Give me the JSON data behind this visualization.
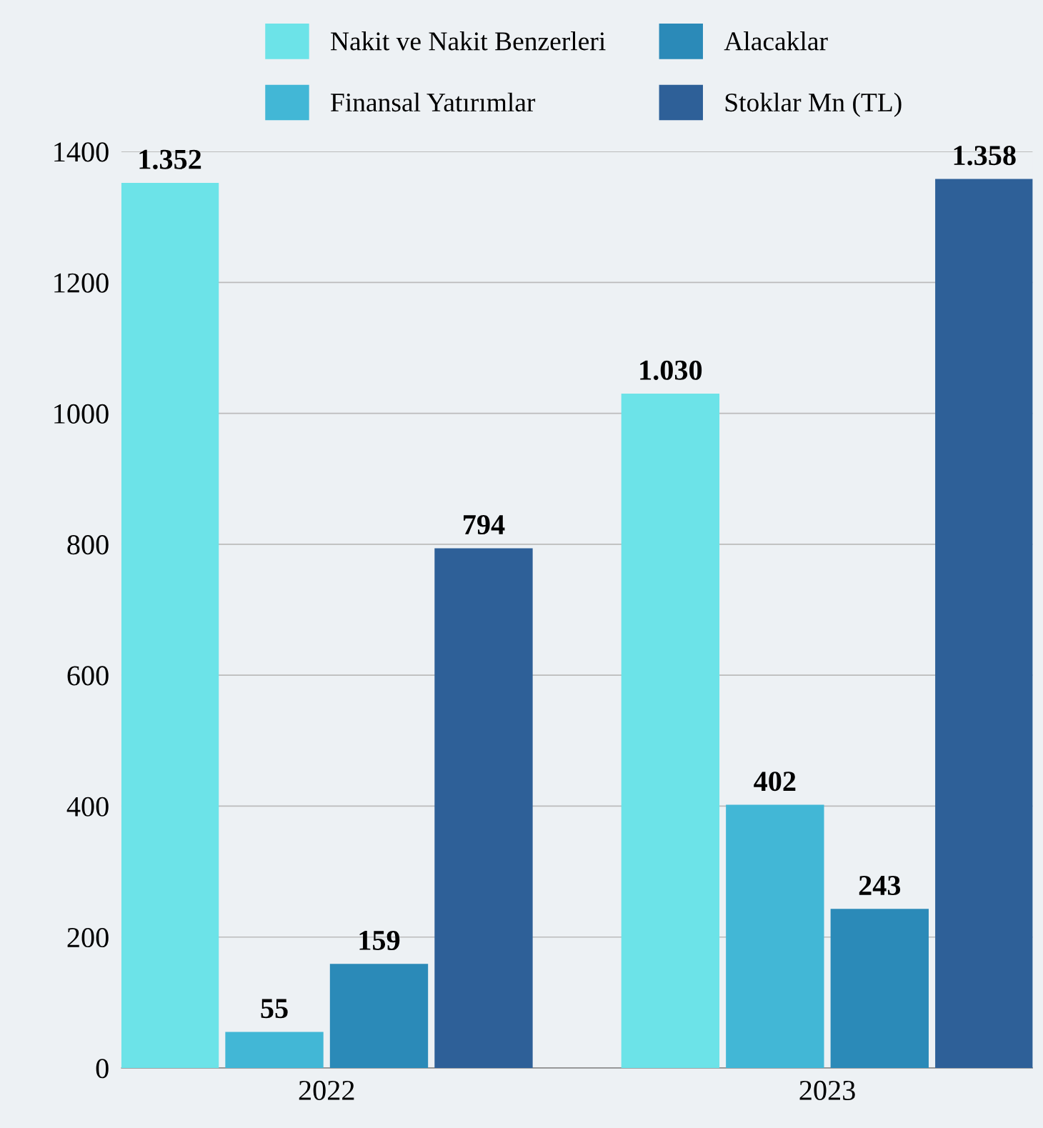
{
  "chart_data": {
    "type": "bar",
    "categories": [
      "2022",
      "2023"
    ],
    "series": [
      {
        "name": "Nakit ve Nakit Benzerleri",
        "color": "#6ce3e8",
        "values": [
          1352,
          1030
        ],
        "value_labels": [
          "1.352",
          "1.030"
        ]
      },
      {
        "name": "Finansal Yatırımlar",
        "color": "#42b7d6",
        "values": [
          55,
          402
        ],
        "value_labels": [
          "55",
          "402"
        ]
      },
      {
        "name": "Alacaklar",
        "color": "#2b8ab8",
        "values": [
          159,
          243
        ],
        "value_labels": [
          "159",
          "243"
        ]
      },
      {
        "name": "Stoklar Mn (TL)",
        "color": "#2e6098",
        "values": [
          794,
          1358
        ],
        "value_labels": [
          "794",
          "1.358"
        ]
      }
    ],
    "ylim": [
      0,
      1400
    ],
    "yticks": [
      0,
      200,
      400,
      600,
      800,
      1000,
      1200,
      1400
    ],
    "grid": "y",
    "legend": "top"
  }
}
